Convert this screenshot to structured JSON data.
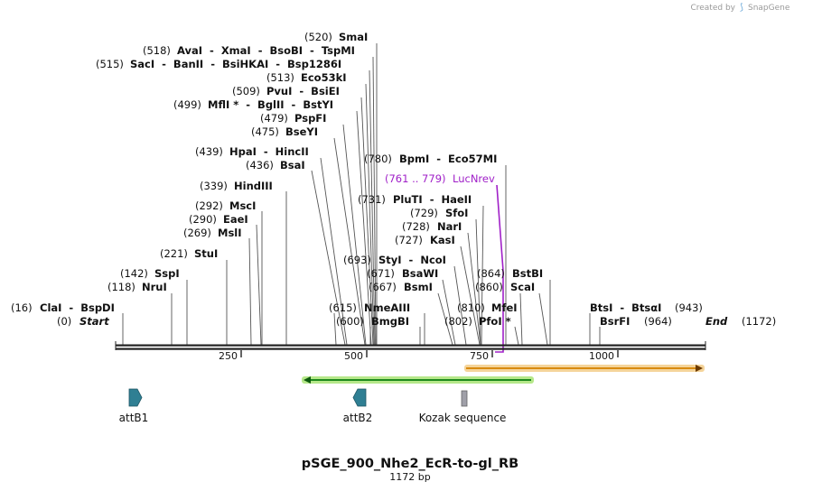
{
  "credit": {
    "prefix": "Created by",
    "brand": "SnapGene"
  },
  "plasmid": {
    "name": "pSGE_900_Nhe2_EcR-to-gl_RB",
    "length_label": "1172 bp",
    "length": 1172
  },
  "ruler": {
    "ticks": [
      "250",
      "500",
      "750",
      "1000"
    ]
  },
  "sites": [
    {
      "pos": "(520)",
      "names": "SmaI"
    },
    {
      "pos": "(518)",
      "names": "AvaI  -  XmaI  -  BsoBI  -  TspMI"
    },
    {
      "pos": "(515)",
      "names": "SacI  -  BanII  -  BsiHKAI  -  Bsp1286I"
    },
    {
      "pos": "(513)",
      "names": "Eco53kI"
    },
    {
      "pos": "(509)",
      "names": "PvuI  -  BsiEI"
    },
    {
      "pos": "(499)",
      "names": "MflI *  -  BglII  -  BstYI"
    },
    {
      "pos": "(479)",
      "names": "PspFI"
    },
    {
      "pos": "(475)",
      "names": "BseYI"
    },
    {
      "pos": "(439)",
      "names": "HpaI  -  HincII"
    },
    {
      "pos": "(436)",
      "names": "BsaI"
    },
    {
      "pos": "(339)",
      "names": "HindIII"
    },
    {
      "pos": "(292)",
      "names": "MscI"
    },
    {
      "pos": "(290)",
      "names": "EaeI"
    },
    {
      "pos": "(269)",
      "names": "MslI"
    },
    {
      "pos": "(221)",
      "names": "StuI"
    },
    {
      "pos": "(142)",
      "names": "SspI"
    },
    {
      "pos": "(118)",
      "names": "NruI"
    },
    {
      "pos": "(16)",
      "names": "ClaI  -  BspDI"
    },
    {
      "pos": "(0)",
      "names": "Start"
    },
    {
      "pos": "(780)",
      "names": "BpmI  -  Eco57MI"
    },
    {
      "pos": "(731)",
      "names": "PluTI  -  HaeII"
    },
    {
      "pos": "(729)",
      "names": "SfoI"
    },
    {
      "pos": "(728)",
      "names": "NarI"
    },
    {
      "pos": "(727)",
      "names": "KasI"
    },
    {
      "pos": "(693)",
      "names": "StyI  -  NcoI"
    },
    {
      "pos": "(671)",
      "names": "BsaWI"
    },
    {
      "pos": "(667)",
      "names": "BsmI"
    },
    {
      "pos": "(615)",
      "names": "NmeAIII"
    },
    {
      "pos": "(600)",
      "names": "BmgBI"
    },
    {
      "pos": "(810)",
      "names": "MfeI"
    },
    {
      "pos": "(802)",
      "names": "PfoI *"
    },
    {
      "pos": "(864)",
      "names": "BstBI"
    },
    {
      "pos": "(860)",
      "names": "ScaI"
    },
    {
      "pos": "(943)",
      "names": "BtsI  -  BtsαI"
    },
    {
      "pos": "(964)",
      "names": "BsrFI"
    },
    {
      "pos": "(1172)",
      "names": "End"
    }
  ],
  "primer": {
    "pos": "(761 .. 779)",
    "name": "LucNrev",
    "color": "#a020c8"
  },
  "features": [
    {
      "name": "attB1",
      "color": "#2f7f93"
    },
    {
      "name": "attB2",
      "color": "#2f7f93"
    },
    {
      "name": "Kozak sequence",
      "color": "#a0a0a8"
    }
  ],
  "feature_colors": {
    "green_arrow": "#1e8a1e",
    "green_halo": "#b6e88a",
    "orange_arrow": "#d88a10",
    "orange_halo": "#f5d49a"
  }
}
